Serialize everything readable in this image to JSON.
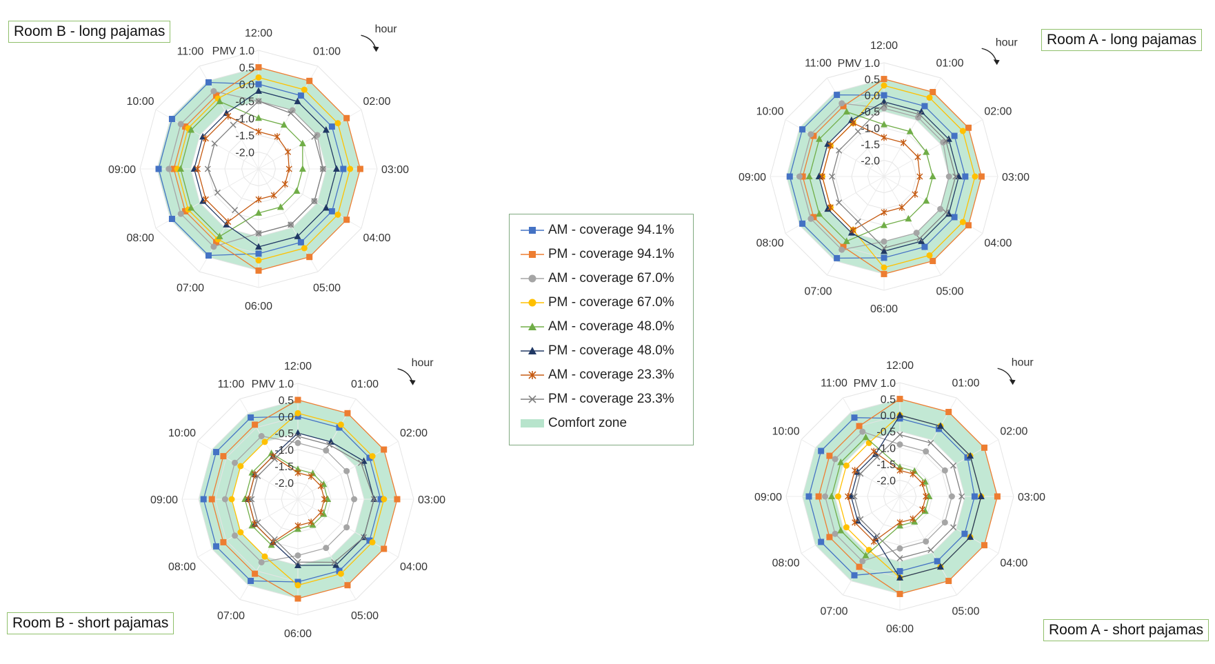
{
  "chart_data": {
    "type": "radar",
    "hours": [
      "12:00",
      "01:00",
      "02:00",
      "03:00",
      "04:00",
      "05:00",
      "06:00",
      "07:00",
      "08:00",
      "09:00",
      "10:00",
      "11:00"
    ],
    "axis_title": "PMV",
    "radial_ticks": [
      "1.0",
      "0.5",
      "0.0",
      "-0.5",
      "-1.0",
      "-1.5",
      "-2.0"
    ],
    "rlim": [
      -2.5,
      1.0
    ],
    "comfort_zone": [
      -0.5,
      0.5
    ],
    "direction_label": "hour",
    "legend": {
      "entries": [
        "AM - coverage 94.1%",
        "PM - coverage 94.1%",
        "AM - coverage 67.0%",
        "PM - coverage 67.0%",
        "AM - coverage 48.0%",
        "PM - coverage 48.0%",
        "AM - coverage 23.3%",
        "PM - coverage 23.3%",
        "Comfort zone"
      ],
      "colors": [
        "#4472c4",
        "#ed7d31",
        "#a5a5a5",
        "#ffc000",
        "#70ad47",
        "#203864",
        "#c55a11",
        "#7f7f7f",
        "#b7e4cc"
      ],
      "markers": [
        "square",
        "square",
        "circle",
        "circle",
        "triangle",
        "triangle",
        "star",
        "cross",
        "band"
      ]
    },
    "panels": [
      {
        "title": "Room B - long pajamas",
        "series": [
          {
            "name": "AM - coverage 94.1%",
            "values": [
              0.0,
              0.0,
              0.0,
              0.0,
              0.0,
              0.0,
              0.0,
              0.45,
              0.45,
              0.45,
              0.45,
              0.45
            ]
          },
          {
            "name": "PM - coverage 94.1%",
            "values": [
              0.5,
              0.5,
              0.5,
              0.5,
              0.5,
              0.5,
              0.5,
              0.0,
              0.0,
              0.0,
              0.0,
              0.0
            ]
          },
          {
            "name": "AM - coverage 67.0%",
            "values": [
              -0.5,
              -0.5,
              -0.5,
              -0.6,
              -0.6,
              -0.6,
              -0.6,
              0.15,
              0.15,
              0.15,
              0.15,
              0.15
            ]
          },
          {
            "name": "PM - coverage 67.0%",
            "values": [
              0.2,
              0.2,
              0.2,
              0.2,
              0.2,
              0.2,
              0.2,
              -0.1,
              -0.1,
              -0.1,
              -0.1,
              -0.1
            ]
          },
          {
            "name": "AM - coverage 48.0%",
            "values": [
              -1.0,
              -1.0,
              -1.0,
              -1.2,
              -1.2,
              -1.2,
              -1.2,
              -0.2,
              -0.2,
              -0.2,
              -0.2,
              -0.2
            ]
          },
          {
            "name": "PM - coverage 48.0%",
            "values": [
              -0.2,
              -0.2,
              -0.2,
              -0.2,
              -0.2,
              -0.2,
              -0.2,
              -0.6,
              -0.6,
              -0.6,
              -0.6,
              -0.6
            ]
          },
          {
            "name": "AM - coverage 23.3%",
            "values": [
              -1.4,
              -1.4,
              -1.5,
              -1.6,
              -1.6,
              -1.6,
              -1.6,
              -0.7,
              -0.7,
              -0.7,
              -0.7,
              -0.7
            ]
          },
          {
            "name": "PM - coverage 23.3%",
            "values": [
              -0.5,
              -0.6,
              -0.6,
              -0.6,
              -0.6,
              -0.6,
              -0.6,
              -1.1,
              -1.1,
              -1.0,
              -1.0,
              -1.0
            ]
          }
        ]
      },
      {
        "title": "Room A - long pajamas",
        "series": [
          {
            "name": "AM - coverage 94.1%",
            "values": [
              0.0,
              0.0,
              0.0,
              0.0,
              0.0,
              0.0,
              0.0,
              0.4,
              0.4,
              0.4,
              0.4,
              0.4
            ]
          },
          {
            "name": "PM - coverage 94.1%",
            "values": [
              0.5,
              0.5,
              0.5,
              0.5,
              0.5,
              0.5,
              0.5,
              0.0,
              0.0,
              0.0,
              0.0,
              0.0
            ]
          },
          {
            "name": "AM - coverage 67.0%",
            "values": [
              -0.4,
              -0.4,
              -0.4,
              -0.5,
              -0.5,
              -0.5,
              -0.5,
              0.1,
              0.1,
              0.1,
              0.1,
              0.1
            ]
          },
          {
            "name": "PM - coverage 67.0%",
            "values": [
              0.3,
              0.3,
              0.3,
              0.3,
              0.3,
              0.3,
              0.3,
              -0.6,
              -0.6,
              -0.6,
              -0.6,
              -0.6
            ]
          },
          {
            "name": "AM - coverage 48.0%",
            "values": [
              -0.9,
              -0.9,
              -1.0,
              -1.0,
              -1.0,
              -1.0,
              -1.0,
              -0.2,
              -0.2,
              -0.2,
              -0.2,
              -0.2
            ]
          },
          {
            "name": "PM - coverage 48.0%",
            "values": [
              -0.2,
              -0.2,
              -0.2,
              -0.2,
              -0.2,
              -0.2,
              -0.2,
              -0.5,
              -0.5,
              -0.5,
              -0.5,
              -0.5
            ]
          },
          {
            "name": "AM - coverage 23.3%",
            "values": [
              -1.3,
              -1.3,
              -1.3,
              -1.4,
              -1.4,
              -1.4,
              -1.4,
              -0.6,
              -0.6,
              -0.6,
              -0.6,
              -0.6
            ]
          },
          {
            "name": "PM - coverage 23.3%",
            "values": [
              -0.3,
              -0.3,
              -0.3,
              -0.3,
              -0.3,
              -0.3,
              -0.3,
              -0.9,
              -0.9,
              -0.9,
              -0.9,
              -0.9
            ]
          }
        ]
      },
      {
        "title": "Room B - short pajamas",
        "series": [
          {
            "name": "AM - coverage 94.1%",
            "values": [
              0.0,
              0.0,
              0.0,
              0.0,
              0.0,
              0.0,
              0.0,
              0.35,
              0.35,
              0.35,
              0.35,
              0.35
            ]
          },
          {
            "name": "PM - coverage 94.1%",
            "values": [
              0.5,
              0.5,
              0.5,
              0.5,
              0.5,
              0.5,
              0.5,
              0.1,
              0.1,
              0.1,
              0.1,
              0.1
            ]
          },
          {
            "name": "AM - coverage 67.0%",
            "values": [
              -0.8,
              -0.8,
              -0.8,
              -0.8,
              -0.8,
              -0.8,
              -0.8,
              -0.3,
              -0.3,
              -0.3,
              -0.3,
              -0.3
            ]
          },
          {
            "name": "PM - coverage 67.0%",
            "values": [
              0.1,
              0.1,
              0.1,
              0.1,
              0.1,
              0.1,
              0.1,
              -0.5,
              -0.5,
              -0.5,
              -0.5,
              -0.5
            ]
          },
          {
            "name": "AM - coverage 48.0%",
            "values": [
              -1.6,
              -1.6,
              -1.6,
              -1.6,
              -1.6,
              -1.6,
              -1.6,
              -0.9,
              -0.9,
              -0.9,
              -0.9,
              -0.9
            ]
          },
          {
            "name": "PM - coverage 48.0%",
            "values": [
              -0.5,
              -0.5,
              -0.2,
              -0.2,
              -0.2,
              -0.2,
              -0.5,
              -1.0,
              -1.0,
              -1.0,
              -1.0,
              -1.0
            ]
          },
          {
            "name": "AM - coverage 23.3%",
            "values": [
              -1.7,
              -1.7,
              -1.7,
              -1.7,
              -1.7,
              -1.7,
              -1.7,
              -1.0,
              -1.0,
              -1.0,
              -1.0,
              -1.0
            ]
          },
          {
            "name": "PM - coverage 23.3%",
            "values": [
              -0.6,
              -0.6,
              -0.3,
              -0.2,
              -0.2,
              -0.3,
              -0.6,
              -1.1,
              -1.1,
              -1.1,
              -1.1,
              -1.1
            ]
          }
        ]
      },
      {
        "title": "Room A - short pajamas",
        "series": [
          {
            "name": "AM - coverage 94.1%",
            "values": [
              -0.1,
              -0.1,
              -0.1,
              -0.2,
              -0.2,
              -0.2,
              -0.2,
              0.3,
              0.3,
              0.3,
              0.3,
              0.3
            ]
          },
          {
            "name": "PM - coverage 94.1%",
            "values": [
              0.5,
              0.5,
              0.5,
              0.5,
              0.5,
              0.5,
              0.5,
              0.0,
              0.0,
              0.0,
              0.0,
              0.0
            ]
          },
          {
            "name": "AM - coverage 67.0%",
            "values": [
              -0.9,
              -0.9,
              -0.9,
              -0.9,
              -0.9,
              -0.9,
              -0.9,
              -0.2,
              -0.2,
              -0.2,
              -0.2,
              -0.2
            ]
          },
          {
            "name": "PM - coverage 67.0%",
            "values": [
              0.0,
              0.0,
              0.0,
              0.0,
              0.0,
              0.0,
              0.0,
              -0.6,
              -0.6,
              -0.6,
              -0.6,
              -0.6
            ]
          },
          {
            "name": "AM - coverage 48.0%",
            "values": [
              -1.6,
              -1.6,
              -1.6,
              -1.6,
              -1.6,
              -1.6,
              -1.6,
              -0.4,
              -0.4,
              -0.4,
              -0.4,
              -0.4
            ]
          },
          {
            "name": "PM - coverage 48.0%",
            "values": [
              0.0,
              0.0,
              0.0,
              0.0,
              0.0,
              0.0,
              0.0,
              -1.0,
              -1.0,
              -1.0,
              -1.0,
              -1.0
            ]
          },
          {
            "name": "AM - coverage 23.3%",
            "values": [
              -1.7,
              -1.7,
              -1.7,
              -1.7,
              -1.7,
              -1.7,
              -1.7,
              -0.9,
              -0.9,
              -0.9,
              -0.9,
              -0.9
            ]
          },
          {
            "name": "PM - coverage 23.3%",
            "values": [
              -0.6,
              -0.6,
              -0.6,
              -0.6,
              -0.6,
              -0.6,
              -0.6,
              -1.1,
              -1.1,
              -1.1,
              -1.1,
              -1.1
            ]
          }
        ]
      }
    ]
  }
}
